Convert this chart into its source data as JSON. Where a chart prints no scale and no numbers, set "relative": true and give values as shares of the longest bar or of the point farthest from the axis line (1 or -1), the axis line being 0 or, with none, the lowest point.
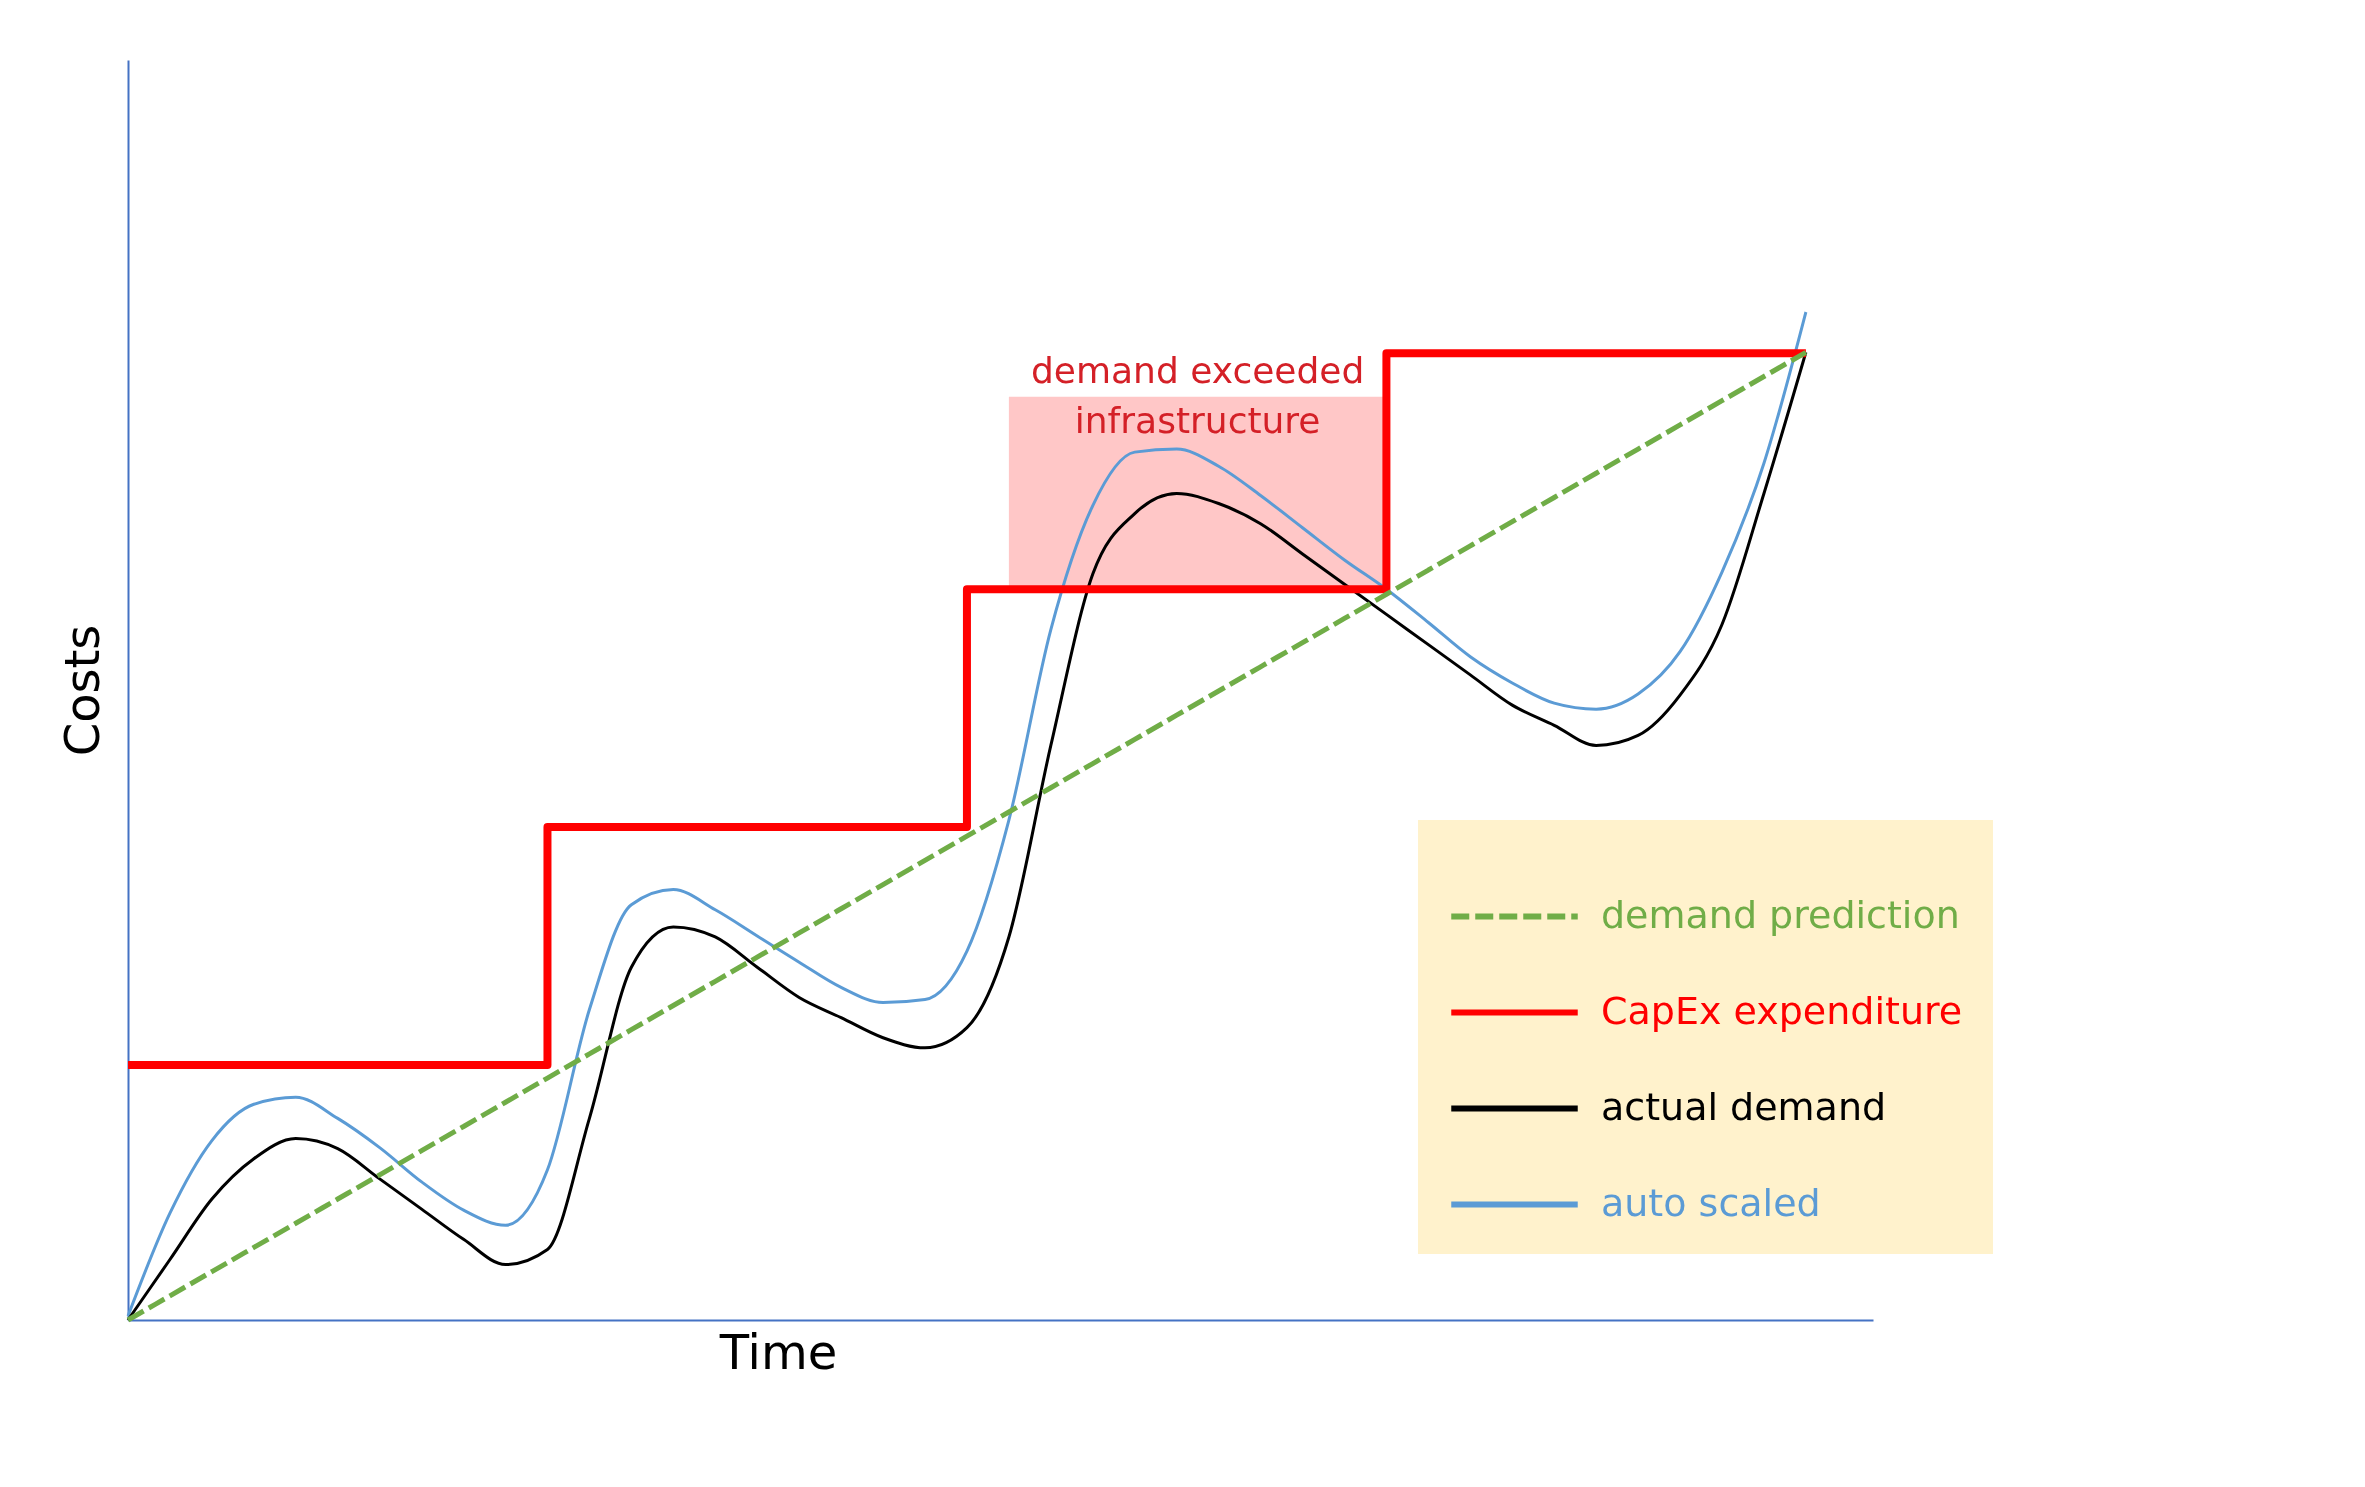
{
  "chart_data": {
    "type": "line",
    "relative": true,
    "xlabel": "Time",
    "ylabel": "Costs",
    "legend": "bottom right",
    "marker": "none",
    "grid": false,
    "categories": [
      null,
      null,
      null,
      null,
      null,
      null,
      null,
      null,
      null,
      null,
      null,
      null,
      null,
      null,
      null,
      null,
      null,
      null,
      null,
      null,
      null,
      null,
      null,
      null,
      null,
      null,
      null,
      null,
      null,
      null,
      null,
      null,
      null,
      null,
      null,
      null,
      null,
      null,
      null,
      null,
      null
    ],
    "series": [
      {
        "name": "demand prediction",
        "color": "#70ad47",
        "type": "line",
        "line_style": "dashed",
        "values": [
          0,
          0.024,
          0.048,
          0.072,
          0.096,
          0.12,
          0.144,
          0.168,
          0.192,
          0.216,
          0.24,
          0.264,
          0.288,
          0.312,
          0.336,
          0.36,
          0.384,
          0.408,
          0.432,
          0.456,
          0.48,
          0.504,
          0.528,
          0.552,
          0.576,
          0.6,
          0.624,
          0.648,
          0.672,
          0.696,
          0.72,
          0.744,
          0.768,
          0.792,
          0.816,
          0.84,
          0.864,
          0.888,
          0.912,
          0.936,
          0.96
        ]
      },
      {
        "name": "CapEx expenditure",
        "color": "#ff0000",
        "type": "step",
        "line_style": "solid",
        "values": [
          0.253,
          0.253,
          0.253,
          0.253,
          0.253,
          0.253,
          0.253,
          0.253,
          0.253,
          0.253,
          0.489,
          0.489,
          0.489,
          0.489,
          0.489,
          0.489,
          0.489,
          0.489,
          0.489,
          0.489,
          0.725,
          0.725,
          0.725,
          0.725,
          0.725,
          0.725,
          0.725,
          0.725,
          0.725,
          0.725,
          0.959,
          0.959,
          0.959,
          0.959,
          0.959,
          0.959,
          0.959,
          0.959,
          0.959,
          0.959,
          0.959
        ]
      },
      {
        "name": "actual demand",
        "color": "#000000",
        "type": "line",
        "line_style": "solid",
        "values": [
          0,
          0.06,
          0.12,
          0.16,
          0.18,
          0.17,
          0.14,
          0.11,
          0.08,
          0.055,
          0.07,
          0.2,
          0.35,
          0.39,
          0.38,
          0.35,
          0.32,
          0.3,
          0.28,
          0.27,
          0.29,
          0.38,
          0.57,
          0.74,
          0.8,
          0.82,
          0.81,
          0.79,
          0.76,
          0.73,
          0.7,
          0.67,
          0.64,
          0.61,
          0.59,
          0.57,
          0.58,
          0.62,
          0.69,
          0.82,
          0.96
        ]
      },
      {
        "name": "auto scaled",
        "color": "#5b9bd5",
        "type": "line",
        "line_style": "solid",
        "values": [
          0.004,
          0.106,
          0.178,
          0.214,
          0.221,
          0.2,
          0.171,
          0.137,
          0.109,
          0.094,
          0.149,
          0.308,
          0.412,
          0.427,
          0.407,
          0.381,
          0.355,
          0.33,
          0.315,
          0.318,
          0.366,
          0.496,
          0.685,
          0.808,
          0.861,
          0.864,
          0.847,
          0.818,
          0.786,
          0.754,
          0.725,
          0.692,
          0.658,
          0.632,
          0.612,
          0.606,
          0.621,
          0.663,
          0.742,
          0.85,
          1
        ]
      }
    ],
    "bands": [
      {
        "axis": "y",
        "from": 0.725,
        "to": 0.916,
        "label": "demand exceeded\ninfrastructure",
        "color": "#ffc7c7"
      }
    ]
  }
}
